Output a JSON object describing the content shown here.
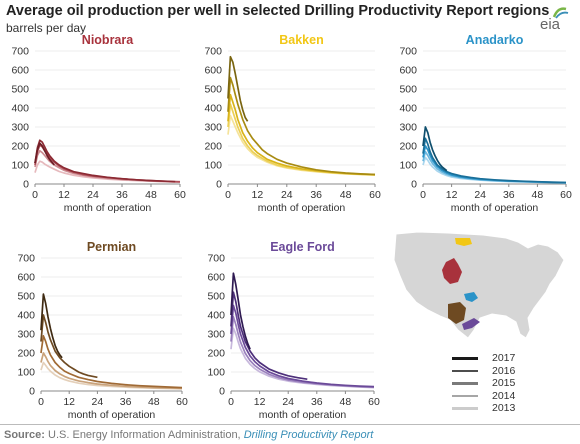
{
  "title": "Average oil production per well in selected Drilling Productivity Report regions",
  "subtitle": "barrels per day",
  "logo_text": "eia",
  "source": {
    "label": "Source:",
    "text": "U.S. Energy Information Administration,",
    "link": "Drilling Productivity Report"
  },
  "legend": [
    {
      "label": "2017",
      "color": "#1a1a1a"
    },
    {
      "label": "2016",
      "color": "#4d4d4d"
    },
    {
      "label": "2015",
      "color": "#7a7a7a"
    },
    {
      "label": "2014",
      "color": "#a6a6a6"
    },
    {
      "label": "2013",
      "color": "#cccccc"
    }
  ],
  "map_regions": [
    {
      "name": "Bakken",
      "color": "#f2c716"
    },
    {
      "name": "Niobrara",
      "color": "#a8323c"
    },
    {
      "name": "Anadarko",
      "color": "#2b93c8"
    },
    {
      "name": "Permian",
      "color": "#6e4a22"
    },
    {
      "name": "Eagle Ford",
      "color": "#6b4a99"
    }
  ],
  "chart_data": [
    {
      "type": "line",
      "title": "Niobrara",
      "title_color": "#a8323c",
      "xlabel": "month of operation",
      "ylabel": "barrels per day",
      "xlim": [
        0,
        60
      ],
      "ylim": [
        0,
        700
      ],
      "xticks": [
        0,
        12,
        24,
        36,
        48,
        60
      ],
      "yticks": [
        0,
        100,
        200,
        300,
        400,
        500,
        600,
        700
      ],
      "series": [
        {
          "name": "2017",
          "color": "#6e1e26",
          "x": [
            0,
            1,
            2,
            3,
            4,
            5,
            6,
            7,
            8
          ],
          "y": [
            110,
            180,
            215,
            200,
            175,
            150,
            130,
            115,
            100
          ]
        },
        {
          "name": "2016",
          "color": "#8c2a33",
          "x": [
            0,
            1,
            2,
            3,
            4,
            5,
            6,
            8,
            10,
            12,
            16,
            20,
            24,
            30,
            36,
            42,
            48,
            54,
            58
          ],
          "y": [
            110,
            190,
            230,
            220,
            195,
            170,
            150,
            120,
            100,
            85,
            65,
            55,
            45,
            35,
            28,
            22,
            18,
            15,
            12
          ]
        },
        {
          "name": "2015",
          "color": "#b0505a",
          "x": [
            0,
            1,
            2,
            3,
            4,
            6,
            8,
            10,
            12,
            16,
            20,
            24,
            30,
            36,
            42,
            48,
            54,
            60
          ],
          "y": [
            100,
            170,
            205,
            195,
            175,
            140,
            115,
            95,
            80,
            62,
            50,
            42,
            34,
            27,
            22,
            18,
            14,
            12
          ]
        },
        {
          "name": "2014",
          "color": "#cc8a90",
          "x": [
            0,
            1,
            2,
            3,
            4,
            6,
            8,
            10,
            12,
            16,
            20,
            24,
            30,
            36,
            42,
            48,
            54,
            60
          ],
          "y": [
            90,
            150,
            175,
            165,
            150,
            120,
            100,
            85,
            72,
            56,
            46,
            38,
            30,
            24,
            20,
            16,
            13,
            10
          ]
        },
        {
          "name": "2013",
          "color": "#e6b9bd",
          "x": [
            0,
            1,
            2,
            3,
            4,
            6,
            8,
            10,
            12,
            16,
            20,
            24,
            30,
            36,
            42,
            48,
            54,
            60
          ],
          "y": [
            60,
            100,
            120,
            115,
            105,
            90,
            78,
            66,
            58,
            46,
            38,
            32,
            26,
            21,
            18,
            15,
            12,
            10
          ]
        }
      ]
    },
    {
      "type": "line",
      "title": "Bakken",
      "title_color": "#f2c716",
      "xlabel": "month of operation",
      "ylabel": "barrels per day",
      "xlim": [
        0,
        60
      ],
      "ylim": [
        0,
        700
      ],
      "xticks": [
        0,
        12,
        24,
        36,
        48,
        60
      ],
      "yticks": [
        0,
        100,
        200,
        300,
        400,
        500,
        600,
        700
      ],
      "series": [
        {
          "name": "2017",
          "color": "#7a6510",
          "x": [
            0,
            1,
            2,
            3,
            4,
            5,
            6,
            7,
            8
          ],
          "y": [
            450,
            670,
            640,
            580,
            510,
            440,
            390,
            350,
            330
          ]
        },
        {
          "name": "2016",
          "color": "#a88b12",
          "x": [
            0,
            1,
            2,
            3,
            4,
            6,
            8,
            10,
            12,
            14,
            16,
            20,
            24,
            30,
            36,
            42,
            48,
            54,
            60
          ],
          "y": [
            380,
            560,
            520,
            470,
            420,
            340,
            280,
            240,
            210,
            180,
            160,
            130,
            110,
            90,
            75,
            65,
            58,
            53,
            50
          ]
        },
        {
          "name": "2015",
          "color": "#d9b41a",
          "x": [
            0,
            1,
            2,
            3,
            4,
            6,
            8,
            10,
            12,
            16,
            20,
            24,
            30,
            36,
            42,
            48,
            54,
            60
          ],
          "y": [
            330,
            470,
            430,
            390,
            340,
            270,
            225,
            190,
            165,
            130,
            110,
            95,
            80,
            70,
            62,
            56,
            52,
            50
          ]
        },
        {
          "name": "2014",
          "color": "#ecd056",
          "x": [
            0,
            1,
            2,
            3,
            4,
            6,
            8,
            10,
            12,
            16,
            20,
            24,
            30,
            36,
            42,
            48,
            54,
            60
          ],
          "y": [
            300,
            420,
            380,
            340,
            300,
            240,
            200,
            170,
            150,
            120,
            100,
            88,
            76,
            67,
            60,
            55,
            51,
            48
          ]
        },
        {
          "name": "2013",
          "color": "#f5e39a",
          "x": [
            0,
            1,
            2,
            3,
            4,
            6,
            8,
            10,
            12,
            16,
            20,
            24,
            30,
            36,
            42,
            48,
            54,
            60
          ],
          "y": [
            260,
            360,
            330,
            300,
            270,
            220,
            185,
            160,
            140,
            115,
            96,
            84,
            72,
            64,
            58,
            53,
            50,
            47
          ]
        }
      ]
    },
    {
      "type": "line",
      "title": "Anadarko",
      "title_color": "#2b93c8",
      "xlabel": "month of operation",
      "ylabel": "barrels per day",
      "xlim": [
        0,
        60
      ],
      "ylim": [
        0,
        700
      ],
      "xticks": [
        0,
        12,
        24,
        36,
        48,
        60
      ],
      "yticks": [
        0,
        100,
        200,
        300,
        400,
        500,
        600,
        700
      ],
      "series": [
        {
          "name": "2017",
          "color": "#0f4f6e",
          "x": [
            0,
            1,
            2,
            3,
            4,
            5,
            6,
            7,
            8,
            9,
            10
          ],
          "y": [
            200,
            300,
            270,
            220,
            180,
            150,
            125,
            105,
            90,
            80,
            70
          ]
        },
        {
          "name": "2016",
          "color": "#1a6f99",
          "x": [
            0,
            1,
            2,
            3,
            4,
            6,
            8,
            10,
            12,
            16,
            20,
            24,
            30,
            36,
            42,
            48,
            54,
            60
          ],
          "y": [
            160,
            240,
            210,
            170,
            140,
            100,
            80,
            65,
            55,
            42,
            34,
            28,
            22,
            18,
            15,
            12,
            10,
            8
          ]
        },
        {
          "name": "2015",
          "color": "#2b93c8",
          "x": [
            0,
            1,
            2,
            3,
            4,
            6,
            8,
            10,
            12,
            16,
            20,
            24,
            30,
            36,
            42,
            48,
            54,
            60
          ],
          "y": [
            140,
            200,
            180,
            150,
            125,
            92,
            72,
            58,
            48,
            37,
            30,
            25,
            20,
            16,
            13,
            11,
            9,
            7
          ]
        },
        {
          "name": "2014",
          "color": "#6cb7de",
          "x": [
            0,
            1,
            2,
            3,
            4,
            6,
            8,
            10,
            12,
            16,
            20,
            24,
            30,
            36,
            42,
            48,
            54,
            60
          ],
          "y": [
            120,
            170,
            150,
            128,
            108,
            80,
            63,
            51,
            43,
            33,
            27,
            22,
            18,
            14,
            12,
            10,
            8,
            6
          ]
        },
        {
          "name": "2013",
          "color": "#a9d6ee",
          "x": [
            0,
            1,
            2,
            3,
            4,
            6,
            8,
            10,
            12,
            16,
            20,
            24,
            30,
            36,
            42,
            48,
            54,
            60
          ],
          "y": [
            100,
            140,
            125,
            105,
            90,
            68,
            54,
            44,
            37,
            29,
            24,
            20,
            16,
            13,
            11,
            9,
            7,
            6
          ]
        }
      ]
    },
    {
      "type": "line",
      "title": "Permian",
      "title_color": "#6e4a22",
      "xlabel": "month of operation",
      "ylabel": "barrels per day",
      "xlim": [
        0,
        60
      ],
      "ylim": [
        0,
        700
      ],
      "xticks": [
        0,
        12,
        24,
        36,
        48,
        60
      ],
      "yticks": [
        0,
        100,
        200,
        300,
        400,
        500,
        600,
        700
      ],
      "series": [
        {
          "name": "2017",
          "color": "#3f2a12",
          "x": [
            0,
            1,
            2,
            3,
            4,
            5,
            6,
            7,
            8,
            9
          ],
          "y": [
            320,
            510,
            460,
            390,
            330,
            280,
            240,
            210,
            190,
            175
          ]
        },
        {
          "name": "2016",
          "color": "#6e4a22",
          "x": [
            0,
            1,
            2,
            3,
            4,
            6,
            8,
            10,
            12,
            14,
            16,
            18,
            20,
            24
          ],
          "y": [
            260,
            400,
            360,
            310,
            270,
            210,
            175,
            150,
            130,
            115,
            100,
            90,
            82,
            72
          ]
        },
        {
          "name": "2015",
          "color": "#a06a35",
          "x": [
            0,
            1,
            2,
            3,
            4,
            6,
            8,
            10,
            12,
            16,
            20,
            24,
            30,
            36,
            42,
            48,
            54,
            60
          ],
          "y": [
            200,
            290,
            260,
            220,
            190,
            150,
            125,
            105,
            92,
            72,
            60,
            50,
            40,
            33,
            28,
            24,
            21,
            18
          ]
        },
        {
          "name": "2014",
          "color": "#c9a27a",
          "x": [
            0,
            1,
            2,
            3,
            4,
            6,
            8,
            10,
            12,
            16,
            20,
            24,
            30,
            36,
            42,
            48,
            54,
            60
          ],
          "y": [
            150,
            200,
            180,
            155,
            135,
            108,
            90,
            77,
            67,
            53,
            44,
            37,
            30,
            25,
            21,
            18,
            16,
            14
          ]
        },
        {
          "name": "2013",
          "color": "#e4d0ba",
          "x": [
            0,
            1,
            2,
            3,
            4,
            6,
            8,
            10,
            12,
            16,
            20,
            24,
            30,
            36,
            42,
            48,
            54,
            60
          ],
          "y": [
            110,
            150,
            135,
            118,
            104,
            84,
            70,
            60,
            52,
            41,
            34,
            29,
            24,
            20,
            17,
            15,
            13,
            11
          ]
        }
      ]
    },
    {
      "type": "line",
      "title": "Eagle Ford",
      "title_color": "#6b4a99",
      "xlabel": "month of operation",
      "ylabel": "barrels per day",
      "xlim": [
        0,
        60
      ],
      "ylim": [
        0,
        700
      ],
      "xticks": [
        0,
        12,
        24,
        36,
        48,
        60
      ],
      "yticks": [
        0,
        100,
        200,
        300,
        400,
        500,
        600,
        700
      ],
      "series": [
        {
          "name": "2017",
          "color": "#2f1a52",
          "x": [
            0,
            1,
            2,
            3,
            4,
            5,
            6,
            7,
            8
          ],
          "y": [
            400,
            620,
            560,
            480,
            400,
            340,
            290,
            250,
            220
          ]
        },
        {
          "name": "2016",
          "color": "#4d2f7a",
          "x": [
            0,
            1,
            2,
            3,
            4,
            6,
            8,
            10,
            12,
            16,
            20,
            24,
            28,
            32
          ],
          "y": [
            340,
            520,
            470,
            400,
            340,
            260,
            210,
            175,
            150,
            115,
            95,
            80,
            70,
            62
          ]
        },
        {
          "name": "2015",
          "color": "#6b4a99",
          "x": [
            0,
            1,
            2,
            3,
            4,
            6,
            8,
            10,
            12,
            16,
            20,
            24,
            30,
            36,
            42,
            48,
            54,
            60
          ],
          "y": [
            300,
            450,
            410,
            350,
            300,
            230,
            185,
            155,
            132,
            100,
            80,
            66,
            52,
            42,
            35,
            30,
            26,
            23
          ]
        },
        {
          "name": "2014",
          "color": "#9a80bd",
          "x": [
            0,
            1,
            2,
            3,
            4,
            6,
            8,
            10,
            12,
            16,
            20,
            24,
            30,
            36,
            42,
            48,
            54,
            60
          ],
          "y": [
            260,
            390,
            350,
            300,
            258,
            198,
            160,
            134,
            115,
            88,
            70,
            58,
            46,
            38,
            32,
            27,
            23,
            20
          ]
        },
        {
          "name": "2013",
          "color": "#c7b8dc",
          "x": [
            0,
            1,
            2,
            3,
            4,
            6,
            8,
            10,
            12,
            16,
            20,
            24,
            30,
            36,
            42,
            48,
            54,
            60
          ],
          "y": [
            220,
            330,
            300,
            258,
            222,
            172,
            140,
            118,
            101,
            78,
            62,
            52,
            42,
            35,
            29,
            25,
            21,
            18
          ]
        }
      ]
    }
  ]
}
